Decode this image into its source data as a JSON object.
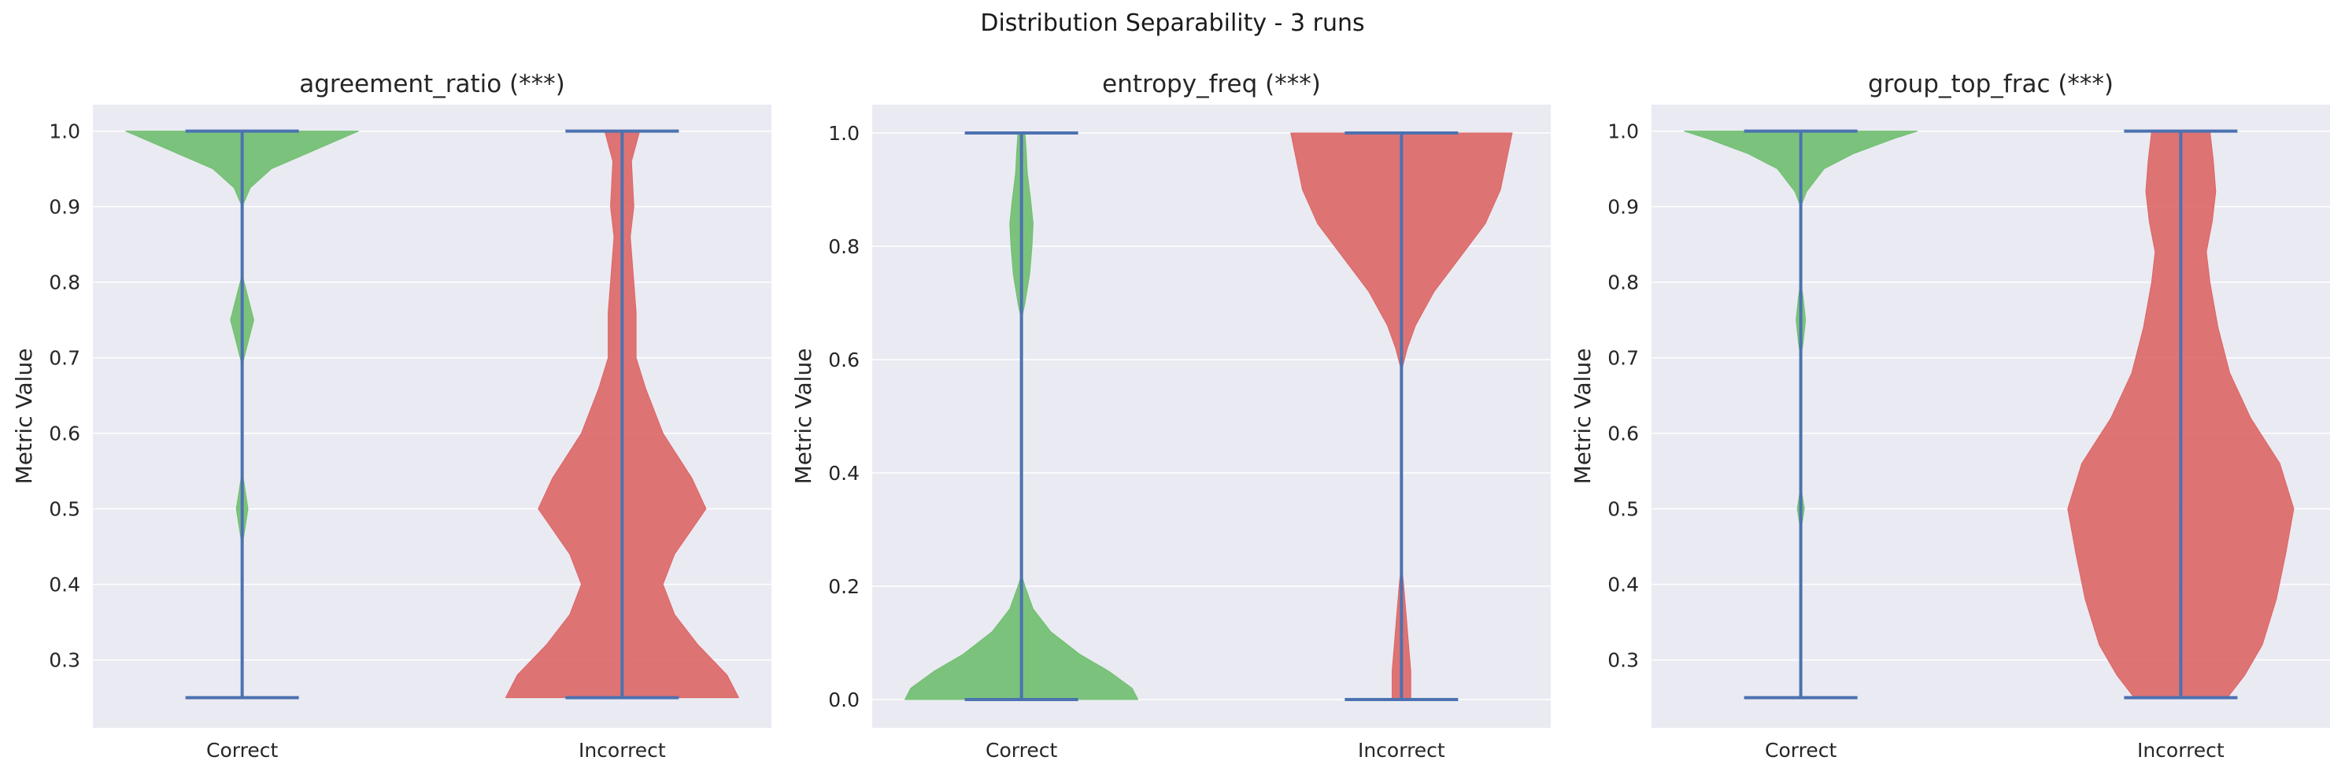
{
  "figure": {
    "suptitle": "Distribution Separability - 3 runs"
  },
  "colors": {
    "correct": "#6fbf6f",
    "incorrect": "#dd6666",
    "whisker": "#4c72b0",
    "plot_bg": "#eaeaf2",
    "grid": "#ffffff"
  },
  "chart_data": [
    {
      "type": "violin",
      "title": "agreement_ratio (***)",
      "ylabel": "Metric Value",
      "xlabel": "",
      "categories": [
        "Correct",
        "Incorrect"
      ],
      "ylim": [
        0.21,
        1.035
      ],
      "yticks": [
        0.3,
        0.4,
        0.5,
        0.6,
        0.7,
        0.8,
        0.9,
        1.0
      ],
      "ytick_labels": [
        "0.3",
        "0.4",
        "0.5",
        "0.6",
        "0.7",
        "0.8",
        "0.9",
        "1.0"
      ],
      "grid": true,
      "series": [
        {
          "category": "Correct",
          "min": 0.25,
          "max": 1.0,
          "density": [
            [
              0.25,
              0
            ],
            [
              0.45,
              0
            ],
            [
              0.47,
              0.02
            ],
            [
              0.5,
              0.05
            ],
            [
              0.53,
              0.02
            ],
            [
              0.55,
              0
            ],
            [
              0.69,
              0
            ],
            [
              0.72,
              0.05
            ],
            [
              0.75,
              0.1
            ],
            [
              0.78,
              0.05
            ],
            [
              0.81,
              0
            ],
            [
              0.9,
              0
            ],
            [
              0.925,
              0.07
            ],
            [
              0.95,
              0.25
            ],
            [
              0.97,
              0.55
            ],
            [
              0.99,
              0.85
            ],
            [
              1.0,
              1.0
            ]
          ]
        },
        {
          "category": "Incorrect",
          "min": 0.25,
          "max": 1.0,
          "density": [
            [
              0.25,
              1.0
            ],
            [
              0.28,
              0.9
            ],
            [
              0.32,
              0.65
            ],
            [
              0.36,
              0.45
            ],
            [
              0.4,
              0.35
            ],
            [
              0.44,
              0.45
            ],
            [
              0.5,
              0.72
            ],
            [
              0.54,
              0.6
            ],
            [
              0.6,
              0.35
            ],
            [
              0.66,
              0.2
            ],
            [
              0.7,
              0.12
            ],
            [
              0.76,
              0.12
            ],
            [
              0.8,
              0.1
            ],
            [
              0.86,
              0.07
            ],
            [
              0.9,
              0.1
            ],
            [
              0.96,
              0.08
            ],
            [
              1.0,
              0.15
            ]
          ]
        }
      ]
    },
    {
      "type": "violin",
      "title": "entropy_freq (***)",
      "ylabel": "Metric Value",
      "xlabel": "",
      "categories": [
        "Correct",
        "Incorrect"
      ],
      "ylim": [
        -0.05,
        1.05
      ],
      "yticks": [
        0.0,
        0.2,
        0.4,
        0.6,
        0.8,
        1.0
      ],
      "ytick_labels": [
        "0.0",
        "0.2",
        "0.4",
        "0.6",
        "0.8",
        "1.0"
      ],
      "grid": true,
      "series": [
        {
          "category": "Correct",
          "min": 0.0,
          "max": 1.0,
          "density": [
            [
              0.0,
              1.0
            ],
            [
              0.02,
              0.95
            ],
            [
              0.05,
              0.75
            ],
            [
              0.08,
              0.5
            ],
            [
              0.12,
              0.25
            ],
            [
              0.16,
              0.1
            ],
            [
              0.2,
              0.03
            ],
            [
              0.22,
              0
            ],
            [
              0.67,
              0
            ],
            [
              0.7,
              0.03
            ],
            [
              0.75,
              0.07
            ],
            [
              0.8,
              0.09
            ],
            [
              0.84,
              0.1
            ],
            [
              0.88,
              0.08
            ],
            [
              0.93,
              0.05
            ],
            [
              0.97,
              0.04
            ],
            [
              1.0,
              0.03
            ]
          ]
        },
        {
          "category": "Incorrect",
          "min": 0.0,
          "max": 1.0,
          "density": [
            [
              0.0,
              0.08
            ],
            [
              0.05,
              0.08
            ],
            [
              0.1,
              0.06
            ],
            [
              0.15,
              0.04
            ],
            [
              0.2,
              0.02
            ],
            [
              0.24,
              0
            ],
            [
              0.58,
              0
            ],
            [
              0.62,
              0.05
            ],
            [
              0.66,
              0.12
            ],
            [
              0.72,
              0.28
            ],
            [
              0.78,
              0.5
            ],
            [
              0.84,
              0.72
            ],
            [
              0.9,
              0.85
            ],
            [
              0.95,
              0.9
            ],
            [
              1.0,
              0.95
            ]
          ]
        }
      ]
    },
    {
      "type": "violin",
      "title": "group_top_frac (***)",
      "ylabel": "Metric Value",
      "xlabel": "",
      "categories": [
        "Correct",
        "Incorrect"
      ],
      "ylim": [
        0.21,
        1.035
      ],
      "yticks": [
        0.3,
        0.4,
        0.5,
        0.6,
        0.7,
        0.8,
        0.9,
        1.0
      ],
      "ytick_labels": [
        "0.3",
        "0.4",
        "0.5",
        "0.6",
        "0.7",
        "0.8",
        "0.9",
        "1.0"
      ],
      "grid": true,
      "series": [
        {
          "category": "Correct",
          "min": 0.25,
          "max": 1.0,
          "density": [
            [
              0.25,
              0
            ],
            [
              0.47,
              0
            ],
            [
              0.49,
              0.02
            ],
            [
              0.5,
              0.03
            ],
            [
              0.51,
              0.02
            ],
            [
              0.53,
              0
            ],
            [
              0.7,
              0
            ],
            [
              0.72,
              0.02
            ],
            [
              0.75,
              0.04
            ],
            [
              0.78,
              0.02
            ],
            [
              0.8,
              0
            ],
            [
              0.9,
              0
            ],
            [
              0.92,
              0.05
            ],
            [
              0.95,
              0.2
            ],
            [
              0.97,
              0.45
            ],
            [
              0.99,
              0.8
            ],
            [
              1.0,
              1.0
            ]
          ]
        },
        {
          "category": "Incorrect",
          "min": 0.25,
          "max": 1.0,
          "density": [
            [
              0.25,
              0.4
            ],
            [
              0.28,
              0.55
            ],
            [
              0.32,
              0.7
            ],
            [
              0.38,
              0.82
            ],
            [
              0.44,
              0.9
            ],
            [
              0.5,
              0.97
            ],
            [
              0.56,
              0.85
            ],
            [
              0.62,
              0.6
            ],
            [
              0.68,
              0.42
            ],
            [
              0.74,
              0.32
            ],
            [
              0.8,
              0.25
            ],
            [
              0.84,
              0.22
            ],
            [
              0.88,
              0.27
            ],
            [
              0.92,
              0.3
            ],
            [
              0.96,
              0.28
            ],
            [
              1.0,
              0.25
            ]
          ]
        }
      ]
    }
  ]
}
